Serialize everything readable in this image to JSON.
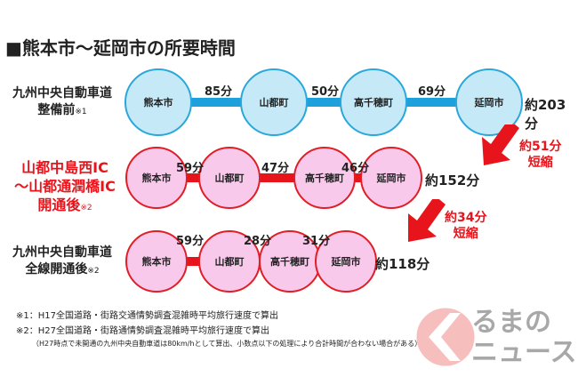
{
  "title": "■熊本市～延岡市の所要時間",
  "rows": [
    {
      "label1": "九州中央自動車道",
      "label2": "整備前",
      "note": "※1",
      "stations": [
        "熊本市",
        "山都町",
        "高千穂町",
        "延岡市"
      ],
      "times": [
        "85分",
        "50分",
        "69分"
      ],
      "total": "約203分",
      "color": "#1ea0dc"
    },
    {
      "label1": "山都中島西IC",
      "label2": "～山都通潤橋IC",
      "label3": "開通後",
      "note": "※2",
      "stations": [
        "熊本市",
        "山都町",
        "高千穂町",
        "延岡市"
      ],
      "times": [
        "59分",
        "47分",
        "46分"
      ],
      "total": "約152分",
      "color": "#e8141c"
    },
    {
      "label1": "九州中央自動車道",
      "label2": "全線開通後",
      "note": "※2",
      "stations": [
        "熊本市",
        "山都町",
        "高千穂町",
        "延岡市"
      ],
      "times": [
        "59分",
        "28分",
        "31分"
      ],
      "total": "約118分",
      "color": "#e8141c"
    }
  ],
  "reductions": [
    {
      "value": "約51分",
      "label": "短縮"
    },
    {
      "value": "約34分",
      "label": "短縮"
    }
  ],
  "footnotes": [
    "※1：H17全国道路・街路交通情勢調査混雑時平均旅行速度で算出",
    "※2：H27全国道路・街路通情勢調査混雑時平均旅行速度で算出",
    "（H27時点で未開通の九州中央自動車道は80km/hとして算出、小数点以下の処理により合計時間が合わない場合がある）"
  ],
  "watermark": "くるまのニュース"
}
